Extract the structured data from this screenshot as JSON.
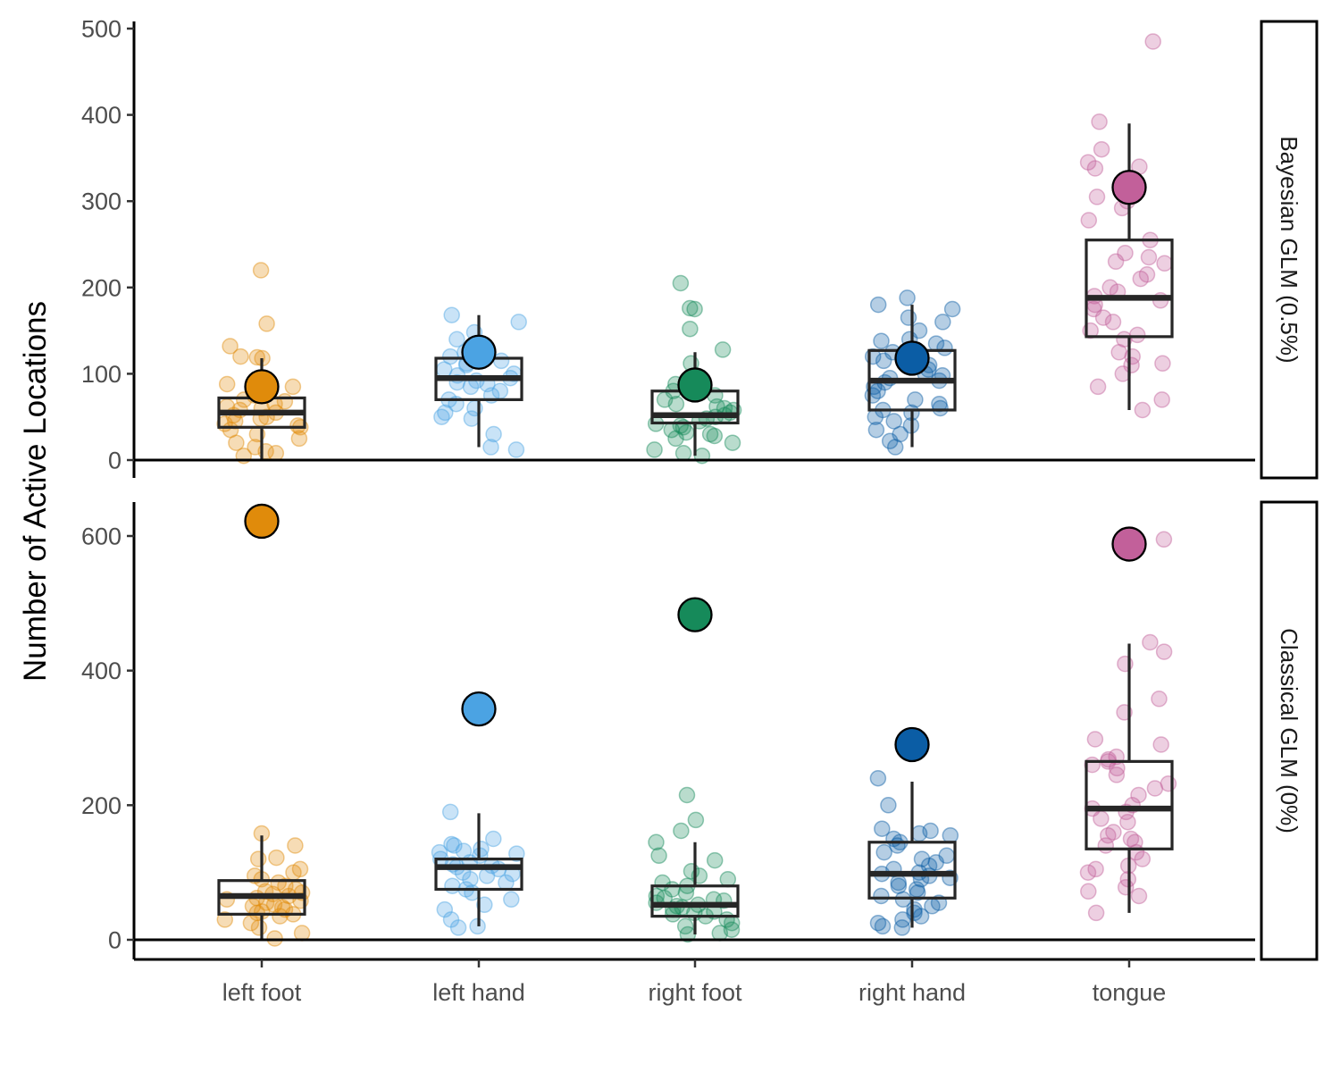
{
  "chart_data": {
    "type": "boxplot-jitter",
    "ylabel": "Number of Active Locations",
    "xlabel": "",
    "categories": [
      "left foot",
      "left hand",
      "right foot",
      "right hand",
      "tongue"
    ],
    "colors": {
      "left foot": "#E08B0B",
      "left hand": "#4BA3E3",
      "right foot": "#168A5A",
      "right hand": "#0B5DA5",
      "tongue": "#C2609A"
    },
    "grid": false,
    "legend": "none",
    "panels": [
      {
        "strip_label": "Bayesian GLM (0.5%)",
        "ylim": [
          0,
          500
        ],
        "yticks": [
          0,
          100,
          200,
          300,
          400,
          500
        ],
        "groups": [
          {
            "category": "left foot",
            "summary": 85,
            "box": {
              "min": 0,
              "q1": 38,
              "median": 55,
              "q3": 72,
              "max": 118
            },
            "points": [
              220,
              158,
              132,
              120,
              119,
              118,
              88,
              85,
              80,
              75,
              70,
              68,
              65,
              62,
              60,
              58,
              55,
              52,
              50,
              48,
              45,
              42,
              40,
              38,
              35,
              30,
              25,
              20,
              15,
              10,
              8,
              5
            ]
          },
          {
            "category": "left hand",
            "summary": 125,
            "box": {
              "min": 15,
              "q1": 70,
              "median": 95,
              "q3": 118,
              "max": 168
            },
            "points": [
              168,
              160,
              148,
              140,
              130,
              125,
              120,
              115,
              112,
              110,
              105,
              100,
              98,
              95,
              92,
              90,
              88,
              85,
              80,
              75,
              70,
              65,
              60,
              55,
              50,
              48,
              30,
              15,
              12
            ]
          },
          {
            "category": "right foot",
            "summary": 87,
            "box": {
              "min": 5,
              "q1": 43,
              "median": 52,
              "q3": 80,
              "max": 125
            },
            "points": [
              205,
              176,
              175,
              152,
              128,
              112,
              95,
              88,
              80,
              75,
              70,
              65,
              62,
              60,
              58,
              55,
              52,
              50,
              48,
              45,
              42,
              40,
              38,
              35,
              32,
              30,
              28,
              25,
              20,
              12,
              8,
              5
            ]
          },
          {
            "category": "right hand",
            "summary": 118,
            "box": {
              "min": 15,
              "q1": 58,
              "median": 92,
              "q3": 127,
              "max": 180
            },
            "points": [
              188,
              180,
              175,
              165,
              160,
              150,
              140,
              138,
              135,
              130,
              125,
              120,
              115,
              110,
              105,
              100,
              98,
              95,
              92,
              90,
              85,
              80,
              75,
              70,
              65,
              60,
              58,
              55,
              50,
              45,
              40,
              35,
              30,
              22,
              15
            ]
          },
          {
            "category": "tongue",
            "summary": 316,
            "box": {
              "min": 58,
              "q1": 143,
              "median": 188,
              "q3": 255,
              "max": 390
            },
            "points": [
              485,
              392,
              360,
              345,
              340,
              338,
              315,
              305,
              300,
              292,
              278,
              255,
              240,
              235,
              230,
              228,
              215,
              210,
              200,
              195,
              190,
              185,
              180,
              175,
              165,
              160,
              150,
              145,
              140,
              125,
              120,
              112,
              110,
              100,
              85,
              70,
              58
            ]
          }
        ]
      },
      {
        "strip_label": "Classical GLM (0%)",
        "ylim": [
          -25,
          625
        ],
        "yticks": [
          0,
          200,
          400,
          600
        ],
        "groups": [
          {
            "category": "left foot",
            "summary": 622,
            "box": {
              "min": 0,
              "q1": 38,
              "median": 65,
              "q3": 88,
              "max": 155
            },
            "points": [
              158,
              140,
              122,
              120,
              105,
              100,
              95,
              90,
              85,
              80,
              75,
              72,
              70,
              68,
              65,
              62,
              60,
              58,
              55,
              52,
              50,
              48,
              45,
              42,
              40,
              38,
              35,
              30,
              25,
              18,
              10,
              2
            ]
          },
          {
            "category": "left hand",
            "summary": 343,
            "box": {
              "min": 20,
              "q1": 75,
              "median": 108,
              "q3": 120,
              "max": 188
            },
            "points": [
              190,
              150,
              142,
              140,
              135,
              132,
              130,
              128,
              125,
              120,
              115,
              112,
              110,
              108,
              105,
              100,
              98,
              95,
              90,
              85,
              80,
              75,
              70,
              60,
              52,
              45,
              30,
              20,
              18
            ]
          },
          {
            "category": "right foot",
            "summary": 483,
            "box": {
              "min": 8,
              "q1": 35,
              "median": 52,
              "q3": 80,
              "max": 145
            },
            "points": [
              215,
              178,
              162,
              145,
              125,
              118,
              102,
              95,
              90,
              85,
              80,
              75,
              70,
              65,
              62,
              60,
              58,
              55,
              52,
              50,
              48,
              45,
              42,
              40,
              38,
              35,
              30,
              25,
              20,
              15,
              10,
              8
            ]
          },
          {
            "category": "right hand",
            "summary": 290,
            "box": {
              "min": 18,
              "q1": 62,
              "median": 98,
              "q3": 145,
              "max": 235
            },
            "points": [
              240,
              200,
              165,
              162,
              158,
              155,
              150,
              145,
              140,
              130,
              125,
              120,
              115,
              110,
              105,
              100,
              98,
              95,
              92,
              90,
              85,
              80,
              75,
              70,
              65,
              60,
              55,
              50,
              45,
              40,
              35,
              30,
              25,
              20,
              18
            ]
          },
          {
            "category": "tongue",
            "summary": 588,
            "box": {
              "min": 40,
              "q1": 135,
              "median": 195,
              "q3": 265,
              "max": 440
            },
            "points": [
              595,
              442,
              428,
              410,
              358,
              338,
              298,
              290,
              272,
              268,
              265,
              260,
              255,
              245,
              232,
              225,
              215,
              200,
              195,
              190,
              180,
              175,
              160,
              155,
              150,
              145,
              140,
              130,
              120,
              110,
              105,
              100,
              90,
              78,
              72,
              65,
              40
            ]
          }
        ]
      }
    ]
  }
}
